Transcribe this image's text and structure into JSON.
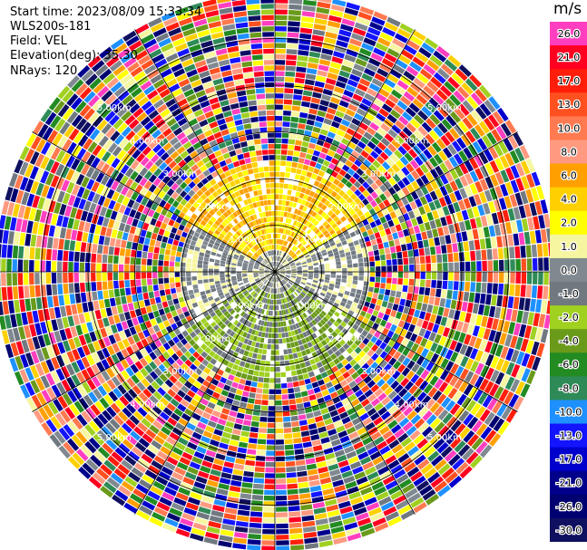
{
  "header": {
    "start_time": "Start time: 2023/08/09 15:33:34",
    "instrument": "WLS200s-181",
    "field": "Field: VEL",
    "elevation": "Elevation(deg): 35.30",
    "nrays": "NRays: 120"
  },
  "chart_data": {
    "type": "ppi",
    "field": "VEL",
    "n_rays": 120,
    "range_rings_km": [
      1.0,
      2.0,
      3.0,
      4.0,
      5.0
    ],
    "max_range_km": 6.0,
    "ring_labels": [
      "1.00km",
      "2.00km",
      "3.00km",
      "4.00km",
      "5.00km"
    ],
    "colorbar": {
      "title": "m/s",
      "ticks": [
        "26.0",
        "21.0",
        "17.0",
        "13.0",
        "10.0",
        "8.0",
        "6.0",
        "4.0",
        "2.0",
        "1.0",
        "0.0",
        "-1.0",
        "-2.0",
        "-4.0",
        "-6.0",
        "-8.0",
        "-10.0",
        "-13.0",
        "-17.0",
        "-21.0",
        "-26.0",
        "-30.0"
      ],
      "colors": [
        "#ff3fbf",
        "#ff0020",
        "#ff1e0a",
        "#ff5020",
        "#ff7a50",
        "#ff9a80",
        "#ffa000",
        "#ffd000",
        "#ffff00",
        "#f6f6a0",
        "#808890",
        "#707880",
        "#a0d020",
        "#6a9a1a",
        "#228b22",
        "#2e8b57",
        "#1e90ff",
        "#1414ff",
        "#0000cd",
        "#00008b",
        "#000070",
        "#101060"
      ]
    },
    "regions": [
      {
        "range_km": [
          0.0,
          0.5
        ],
        "sector": "all",
        "values": [
          -1.0,
          0.0,
          1.0
        ]
      },
      {
        "range_km": [
          0.5,
          2.4
        ],
        "sector": "north",
        "values": [
          2.0,
          4.0,
          6.0
        ]
      },
      {
        "range_km": [
          0.5,
          2.4
        ],
        "sector": "south",
        "values": [
          -2.0,
          -4.0,
          -1.0
        ]
      },
      {
        "range_km": [
          0.5,
          2.0
        ],
        "sector": "east-west",
        "values": [
          0.0,
          -1.0,
          1.0
        ]
      },
      {
        "range_km": [
          2.4,
          6.0
        ],
        "sector": "all",
        "values": "noise"
      }
    ]
  }
}
